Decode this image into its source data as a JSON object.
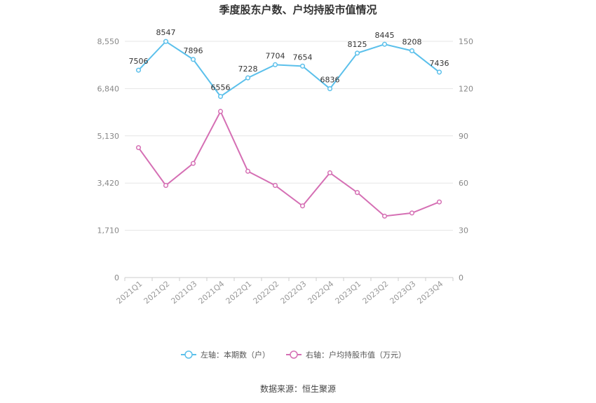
{
  "chart_data": {
    "type": "line",
    "title": "季度股东户数、户均持股市值情况",
    "categories": [
      "2021Q1",
      "2021Q2",
      "2021Q3",
      "2021Q4",
      "2022Q1",
      "2022Q2",
      "2022Q3",
      "2022Q4",
      "2023Q1",
      "2023Q2",
      "2023Q3",
      "2023Q4"
    ],
    "left_axis": {
      "ylim": [
        0,
        8550
      ],
      "ticks": [
        "0",
        "1,710",
        "3,420",
        "5,130",
        "6,840",
        "8,550"
      ]
    },
    "right_axis": {
      "ylim": [
        0,
        150
      ],
      "ticks": [
        "0",
        "30",
        "60",
        "90",
        "120",
        "150"
      ]
    },
    "series": [
      {
        "name": "左轴：本期数（户）",
        "axis": "left",
        "color": "#5bc0eb",
        "values": [
          7506,
          8547,
          7896,
          6556,
          7228,
          7704,
          7654,
          6836,
          8125,
          8445,
          8208,
          7436
        ],
        "labels": [
          "7506",
          "8547",
          "7896",
          "6556",
          "7228",
          "7704",
          "7654",
          "6836",
          "8125",
          "8445",
          "8208",
          "7436"
        ]
      },
      {
        "name": "右轴：户均持股市值（万元）",
        "axis": "right",
        "color": "#d56fb4",
        "values": [
          82.5,
          58.5,
          72.5,
          105.5,
          67.5,
          58.5,
          45.5,
          66.5,
          54,
          39,
          41,
          48
        ]
      }
    ],
    "grid": true,
    "legend_position": "bottom-center"
  },
  "source": "数据来源：恒生聚源"
}
